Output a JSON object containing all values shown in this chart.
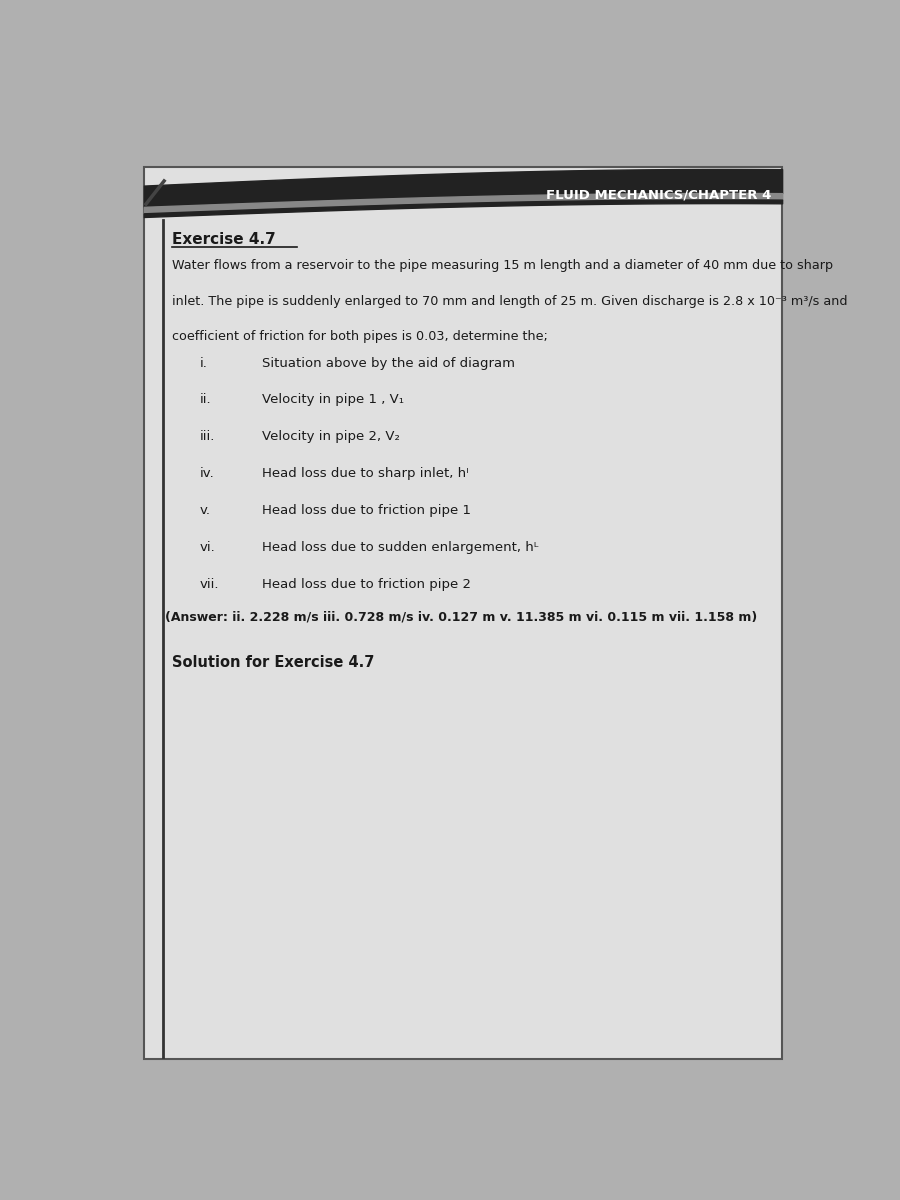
{
  "header": "FLUID MECHANICS/CHAPTER 4",
  "exercise_title": "Exercise 4.7",
  "answer_line": "(Answer: ii. 2.228 m/s iii. 0.728 m/s iv. 0.127 m v. 11.385 m vi. 0.115 m vii. 1.158 m)",
  "solution_label": "Solution for Exercise 4.7",
  "outer_bg": "#b0b0b0",
  "page_bg": "#e0e0e0",
  "text_color": "#1a1a1a",
  "header_bg": "#222222",
  "header_text_color": "#ffffff",
  "item_nums": [
    "i.",
    "ii.",
    "iii.",
    "iv.",
    "v.",
    "vi.",
    "vii."
  ],
  "item_texts": [
    "Situation above by the aid of diagram",
    "Velocity in pipe 1 , V₁",
    "Velocity in pipe 2, V₂",
    "Head loss due to sharp inlet, hᴵ",
    "Head loss due to friction pipe 1",
    "Head loss due to sudden enlargement, hᴸ",
    "Head loss due to friction pipe 2"
  ],
  "problem_line1": "Water flows from a reservoir to the pipe measuring 15 m length and a diameter of 40 mm due to sharp",
  "problem_line2": "inlet. The pipe is suddenly enlarged to 70 mm and length of 25 m. Given discharge is 2.8 x 10⁻³ m³/s and",
  "problem_line3": "coefficient of friction for both pipes is 0.03, determine the;"
}
